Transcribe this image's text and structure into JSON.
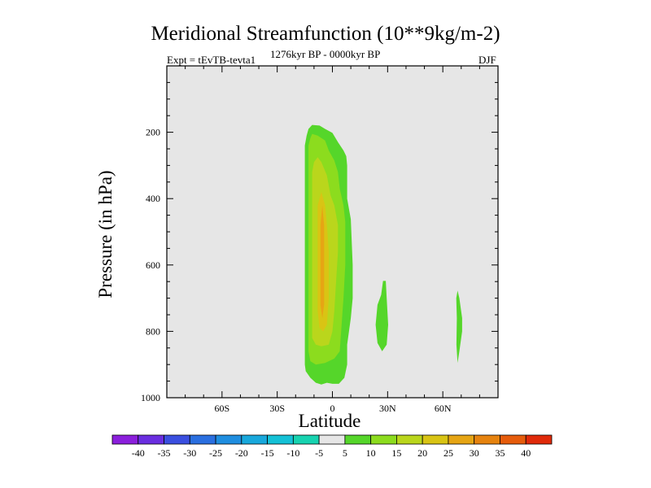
{
  "chart_data": {
    "type": "contour",
    "title": "Meridional Streamfunction (10**9kg/m-2)",
    "left_subtitle": "Expt = tEvTB-tevta1",
    "center_subtitle": "1276kyr BP - 0000kyr BP",
    "right_subtitle": "DJF",
    "xlabel": "Latitude",
    "ylabel": "Pressure (in hPa)",
    "xlim": [
      -90,
      90
    ],
    "ylim": [
      1000,
      0
    ],
    "x_ticks": [
      {
        "value": -60,
        "label": "60S"
      },
      {
        "value": -30,
        "label": "30S"
      },
      {
        "value": 0,
        "label": "0"
      },
      {
        "value": 30,
        "label": "30N"
      },
      {
        "value": 60,
        "label": "60N"
      }
    ],
    "y_ticks": [
      {
        "value": 200,
        "label": "200"
      },
      {
        "value": 400,
        "label": "400"
      },
      {
        "value": 600,
        "label": "600"
      },
      {
        "value": 800,
        "label": "800"
      },
      {
        "value": 1000,
        "label": "1000"
      }
    ],
    "background_color": "#e6e6e6",
    "colorbar": {
      "labels": [
        "-40",
        "-35",
        "-30",
        "-25",
        "-20",
        "-15",
        "-10",
        "-5",
        "5",
        "10",
        "15",
        "20",
        "25",
        "30",
        "35",
        "40"
      ],
      "colors": [
        "#8b1fdc",
        "#6a2ee0",
        "#3a4fe0",
        "#2a6fe0",
        "#1f8ee0",
        "#18a8dc",
        "#14c1d6",
        "#17d3b0",
        "#e6e6e6",
        "#55d62a",
        "#8cdc1e",
        "#bad61c",
        "#d9c414",
        "#e6a514",
        "#e6830f",
        "#e65c0c",
        "#e02a0a"
      ]
    },
    "regions": [
      {
        "name": "main-cell",
        "level": 5,
        "polygon": [
          [
            -11,
            178
          ],
          [
            -7,
            180
          ],
          [
            -4,
            190
          ],
          [
            0,
            202
          ],
          [
            3,
            230
          ],
          [
            6,
            255
          ],
          [
            7.5,
            272
          ],
          [
            8,
            300
          ],
          [
            8,
            400
          ],
          [
            10,
            462
          ],
          [
            11,
            600
          ],
          [
            11,
            700
          ],
          [
            10,
            760
          ],
          [
            8,
            840
          ],
          [
            8,
            900
          ],
          [
            6.5,
            940
          ],
          [
            3.5,
            958
          ],
          [
            0,
            958
          ],
          [
            -3,
            955
          ],
          [
            -6,
            960
          ],
          [
            -9,
            955
          ],
          [
            -12,
            940
          ],
          [
            -14.5,
            920
          ],
          [
            -15,
            900
          ],
          [
            -15,
            240
          ],
          [
            -14,
            210
          ],
          [
            -13,
            190
          ]
        ]
      },
      {
        "name": "main-cell",
        "level": 10,
        "polygon": [
          [
            -11,
            205
          ],
          [
            -8,
            210
          ],
          [
            -4,
            225
          ],
          [
            -2,
            255
          ],
          [
            1,
            285
          ],
          [
            3,
            320
          ],
          [
            4,
            370
          ],
          [
            6,
            420
          ],
          [
            7,
            470
          ],
          [
            7,
            600
          ],
          [
            6,
            700
          ],
          [
            5,
            780
          ],
          [
            4,
            860
          ],
          [
            1,
            882
          ],
          [
            -4,
            895
          ],
          [
            -9,
            900
          ],
          [
            -12,
            890
          ],
          [
            -13,
            860
          ],
          [
            -13,
            240
          ],
          [
            -12,
            218
          ]
        ]
      },
      {
        "name": "main-cell",
        "level": 15,
        "polygon": [
          [
            -8,
            275
          ],
          [
            -6,
            290
          ],
          [
            -3,
            330
          ],
          [
            -1,
            390
          ],
          [
            1,
            420
          ],
          [
            3,
            480
          ],
          [
            3,
            560
          ],
          [
            2,
            650
          ],
          [
            1,
            740
          ],
          [
            0,
            800
          ],
          [
            -2,
            840
          ],
          [
            -6,
            845
          ],
          [
            -9,
            840
          ],
          [
            -11,
            820
          ],
          [
            -11,
            320
          ],
          [
            -10,
            290
          ]
        ]
      },
      {
        "name": "main-cell",
        "level": 20,
        "polygon": [
          [
            -6,
            380
          ],
          [
            -4,
            420
          ],
          [
            -3,
            480
          ],
          [
            -2,
            560
          ],
          [
            -2,
            700
          ],
          [
            -3,
            780
          ],
          [
            -5,
            800
          ],
          [
            -7,
            790
          ],
          [
            -8,
            740
          ],
          [
            -8,
            420
          ]
        ]
      },
      {
        "name": "main-cell",
        "level": 25,
        "polygon": [
          [
            -5.5,
            420
          ],
          [
            -4.5,
            480
          ],
          [
            -4.5,
            720
          ],
          [
            -5.5,
            760
          ],
          [
            -6.5,
            720
          ],
          [
            -6.5,
            480
          ]
        ]
      },
      {
        "name": "mid-cell",
        "level": 5,
        "polygon": [
          [
            27.5,
            648
          ],
          [
            29,
            648
          ],
          [
            29.5,
            700
          ],
          [
            30.3,
            780
          ],
          [
            29.5,
            840
          ],
          [
            27,
            860
          ],
          [
            24.5,
            835
          ],
          [
            23.5,
            780
          ],
          [
            24.5,
            720
          ],
          [
            26.5,
            690
          ]
        ]
      },
      {
        "name": "north-cell",
        "level": 5,
        "polygon": [
          [
            68,
            677
          ],
          [
            69,
            700
          ],
          [
            70.5,
            760
          ],
          [
            70.5,
            800
          ],
          [
            69,
            860
          ],
          [
            68,
            895
          ],
          [
            67.4,
            840
          ],
          [
            67.6,
            760
          ],
          [
            67.3,
            700
          ]
        ]
      }
    ]
  }
}
